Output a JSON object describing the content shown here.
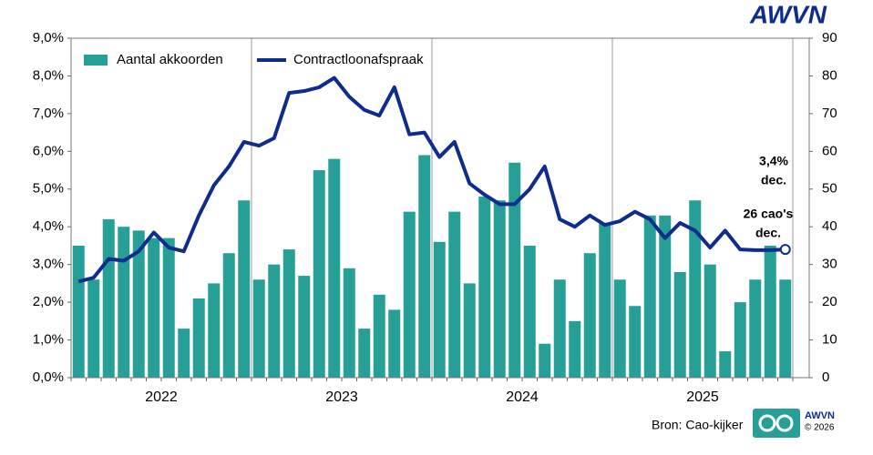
{
  "chart_data": {
    "type": "combo",
    "logo": "AWVN",
    "source": "Bron: Cao-kijker",
    "footer_logo": {
      "name": "AWVN",
      "copyright": "© 2026"
    },
    "year_labels": [
      "2022",
      "2023",
      "2024",
      "2025"
    ],
    "categories": [
      null,
      null,
      null,
      null,
      null,
      null,
      null,
      null,
      null,
      null,
      null,
      null,
      null,
      null,
      null,
      null,
      null,
      null,
      null,
      null,
      null,
      null,
      null,
      null,
      null,
      null,
      null,
      null,
      null,
      null,
      null,
      null,
      null,
      null,
      null,
      null,
      null,
      null,
      null,
      null,
      null,
      null,
      null,
      null,
      null,
      null,
      null,
      null
    ],
    "series": [
      {
        "name": "Aantal akkoorden",
        "type": "bar",
        "axis": "y2",
        "color": "#26a096",
        "values": [
          35,
          26,
          42,
          40,
          39,
          37,
          37,
          13,
          21,
          25,
          33,
          47,
          26,
          30,
          34,
          27,
          55,
          58,
          29,
          13,
          22,
          18,
          44,
          59,
          36,
          44,
          25,
          48,
          47,
          57,
          35,
          9,
          26,
          15,
          33,
          41,
          26,
          19,
          43,
          43,
          28,
          47,
          30,
          7,
          20,
          26,
          35,
          26
        ]
      },
      {
        "name": "Contractloonafspraak",
        "type": "line",
        "axis": "y",
        "color": "#0d2c8e",
        "values": [
          2.55,
          2.65,
          3.15,
          3.1,
          3.35,
          3.85,
          3.45,
          3.35,
          4.3,
          5.1,
          5.6,
          6.25,
          6.15,
          6.35,
          7.55,
          7.6,
          7.7,
          7.95,
          7.45,
          7.1,
          6.95,
          7.7,
          6.45,
          6.5,
          5.85,
          6.25,
          5.15,
          4.85,
          4.6,
          4.6,
          5.0,
          5.6,
          4.2,
          4.0,
          4.3,
          4.05,
          4.15,
          4.4,
          4.2,
          3.7,
          4.1,
          3.9,
          3.45,
          3.9,
          3.4,
          3.38,
          3.38,
          3.4
        ]
      }
    ],
    "ylim": [
      0,
      9
    ],
    "yticks": [
      {
        "value": 0,
        "label": "0,0%"
      },
      {
        "value": 1,
        "label": "1,0%"
      },
      {
        "value": 2,
        "label": "2,0%"
      },
      {
        "value": 3,
        "label": "3,0%"
      },
      {
        "value": 4,
        "label": "4,0%"
      },
      {
        "value": 5,
        "label": "5,0%"
      },
      {
        "value": 6,
        "label": "6,0%"
      },
      {
        "value": 7,
        "label": "7,0%"
      },
      {
        "value": 8,
        "label": "8,0%"
      },
      {
        "value": 9,
        "label": "9,0%"
      }
    ],
    "y2lim": [
      0,
      90
    ],
    "y2ticks": [
      0,
      10,
      20,
      30,
      40,
      50,
      60,
      70,
      80,
      90
    ],
    "annotations": [
      {
        "lines": [
          "3,4%",
          "dec."
        ]
      },
      {
        "lines": [
          "26 cao's",
          "dec."
        ]
      }
    ],
    "legend": "upper left"
  }
}
